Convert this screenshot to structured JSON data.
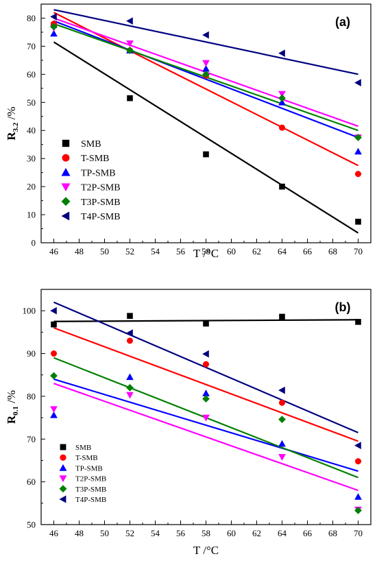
{
  "chart_data": [
    {
      "type": "scatter",
      "panel_label": "(a)",
      "xlabel": "T /°C",
      "ylabel_main": "R",
      "ylabel_sub": "3.2",
      "ylabel_unit": " /%",
      "xlim": [
        45,
        71
      ],
      "ylim": [
        0,
        85
      ],
      "xticks": [
        46,
        48,
        50,
        52,
        54,
        56,
        58,
        60,
        62,
        64,
        66,
        68,
        70
      ],
      "yticks": [
        0,
        10,
        20,
        30,
        40,
        50,
        60,
        70,
        80
      ],
      "legend_position": "bottom-left",
      "series": [
        {
          "name": "SMB",
          "marker": "square",
          "color": "#000000",
          "x": [
            46,
            52,
            58,
            64,
            70
          ],
          "y": [
            77.5,
            51.5,
            31.5,
            20.0,
            7.5
          ],
          "fit": [
            71.5,
            3.5
          ]
        },
        {
          "name": "T-SMB",
          "marker": "circle",
          "color": "#ff0000",
          "x": [
            46,
            52,
            58,
            64,
            70
          ],
          "y": [
            78.0,
            68.5,
            59.5,
            41.0,
            24.5
          ],
          "fit": [
            82.0,
            27.5
          ]
        },
        {
          "name": "TP-SMB",
          "marker": "triangle-up",
          "color": "#0000ff",
          "x": [
            46,
            52,
            58,
            64,
            70
          ],
          "y": [
            74.5,
            68.5,
            62.0,
            50.0,
            32.5
          ],
          "fit": [
            79.0,
            37.5
          ]
        },
        {
          "name": "T2P-SMB",
          "marker": "triangle-down",
          "color": "#ff00ff",
          "x": [
            46,
            52,
            58,
            64,
            70
          ],
          "y": [
            76.5,
            71.0,
            64.0,
            53.0,
            37.5
          ],
          "fit": [
            80.0,
            41.5
          ]
        },
        {
          "name": "T3P-SMB",
          "marker": "diamond",
          "color": "#008000",
          "x": [
            46,
            52,
            58,
            64,
            70
          ],
          "y": [
            77.0,
            68.5,
            60.0,
            51.5,
            37.5
          ],
          "fit": [
            78.0,
            40.0
          ]
        },
        {
          "name": "T4P-SMB",
          "marker": "triangle-left",
          "color": "#00007f",
          "x": [
            46,
            52,
            58,
            64,
            70
          ],
          "y": [
            80.5,
            79.0,
            74.0,
            67.5,
            57.0
          ],
          "fit": [
            83.0,
            60.0
          ]
        }
      ]
    },
    {
      "type": "scatter",
      "panel_label": "(b)",
      "xlabel": "T /°C",
      "ylabel_main": "R",
      "ylabel_sub": "0.1",
      "ylabel_unit": " /%",
      "xlim": [
        45,
        71
      ],
      "ylim": [
        50,
        105
      ],
      "xticks": [
        46,
        48,
        50,
        52,
        54,
        56,
        58,
        60,
        62,
        64,
        66,
        68,
        70
      ],
      "yticks": [
        50,
        60,
        70,
        80,
        90,
        100
      ],
      "legend_position": "bottom-left",
      "series": [
        {
          "name": "SMB",
          "marker": "square",
          "color": "#000000",
          "x": [
            46,
            52,
            58,
            64,
            70
          ],
          "y": [
            96.8,
            98.8,
            97.0,
            98.6,
            97.4
          ],
          "fit": [
            97.5,
            97.9
          ]
        },
        {
          "name": "T-SMB",
          "marker": "circle",
          "color": "#ff0000",
          "x": [
            46,
            52,
            58,
            64,
            70
          ],
          "y": [
            90.0,
            93.0,
            87.5,
            78.5,
            64.8
          ],
          "fit": [
            96.0,
            69.5
          ]
        },
        {
          "name": "TP-SMB",
          "marker": "triangle-up",
          "color": "#0000ff",
          "x": [
            46,
            52,
            58,
            64,
            70
          ],
          "y": [
            75.6,
            84.5,
            80.7,
            68.9,
            56.5
          ],
          "fit": [
            84.0,
            62.5
          ]
        },
        {
          "name": "T2P-SMB",
          "marker": "triangle-down",
          "color": "#ff00ff",
          "x": [
            46,
            52,
            58,
            64,
            70
          ],
          "y": [
            77.0,
            80.3,
            75.0,
            65.8,
            53.5
          ],
          "fit": [
            83.0,
            58.0
          ]
        },
        {
          "name": "T3P-SMB",
          "marker": "diamond",
          "color": "#008000",
          "x": [
            46,
            52,
            58,
            64,
            70
          ],
          "y": [
            84.8,
            82.0,
            79.4,
            74.6,
            53.3
          ],
          "fit": [
            89.0,
            61.0
          ]
        },
        {
          "name": "T4P-SMB",
          "marker": "triangle-left",
          "color": "#00007f",
          "x": [
            46,
            52,
            58,
            64,
            70
          ],
          "y": [
            100.0,
            94.8,
            89.9,
            81.4,
            68.5
          ],
          "fit": [
            102.0,
            71.5
          ]
        }
      ]
    }
  ]
}
